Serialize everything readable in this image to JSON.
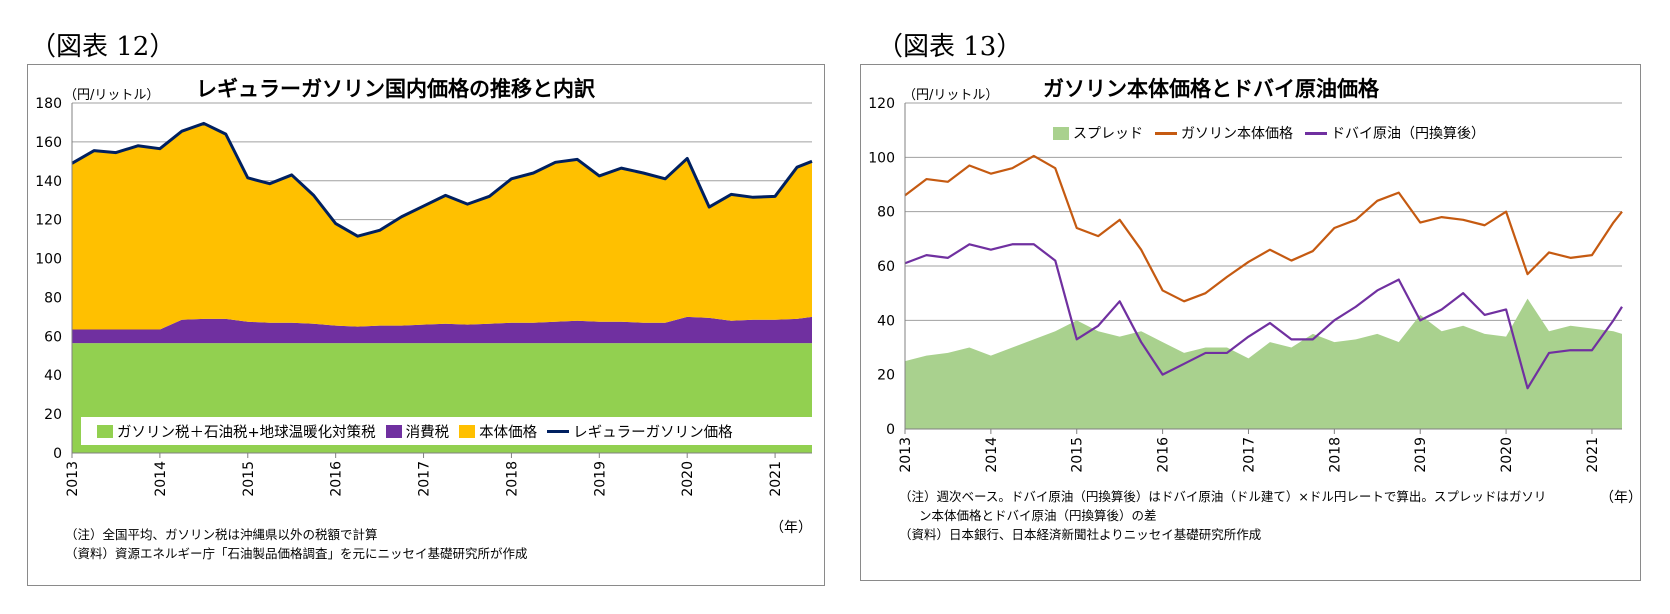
{
  "fig12": {
    "label": "（図表 12）",
    "chart_data": {
      "type": "area",
      "title": "レギュラーガソリン国内価格の推移と内訳",
      "ylabel": "（円/リットル）",
      "xlabel": "（年）",
      "ylim": [
        0,
        180
      ],
      "yticks": [
        "0",
        "20",
        "40",
        "60",
        "80",
        "100",
        "120",
        "140",
        "160",
        "180"
      ],
      "x_years": [
        "2013",
        "2014",
        "2015",
        "2016",
        "2017",
        "2018",
        "2019",
        "2020",
        "2021"
      ],
      "x_range": [
        2013.0,
        2021.42
      ],
      "time": [
        2013.0,
        2013.25,
        2013.5,
        2013.75,
        2014.0,
        2014.25,
        2014.5,
        2014.75,
        2015.0,
        2015.25,
        2015.5,
        2015.75,
        2016.0,
        2016.25,
        2016.5,
        2016.75,
        2017.0,
        2017.25,
        2017.5,
        2017.75,
        2018.0,
        2018.25,
        2018.5,
        2018.75,
        2019.0,
        2019.25,
        2019.5,
        2019.75,
        2020.0,
        2020.25,
        2020.5,
        2020.75,
        2021.0,
        2021.25,
        2021.42
      ],
      "series": [
        {
          "name": "ガソリン税＋石油税+地球温暖化対策税",
          "color": "#92d050",
          "values": [
            56.5,
            56.5,
            56.5,
            56.5,
            56.5,
            56.5,
            56.5,
            56.5,
            56.5,
            56.5,
            56.5,
            56.5,
            56.5,
            56.5,
            56.5,
            56.5,
            56.5,
            56.5,
            56.5,
            56.5,
            56.5,
            56.5,
            56.5,
            56.5,
            56.5,
            56.5,
            56.5,
            56.5,
            56.5,
            56.5,
            56.5,
            56.5,
            56.5,
            56.5,
            56.5
          ]
        },
        {
          "name": "消費税",
          "color": "#7030a0",
          "values": [
            7,
            7,
            7,
            7,
            7,
            12,
            12.5,
            12.5,
            11,
            10.5,
            10.5,
            10,
            9,
            8.5,
            9,
            9,
            9.5,
            10,
            9.5,
            10,
            10.5,
            10.5,
            11,
            11.5,
            11,
            11,
            10.5,
            10.5,
            13.5,
            13,
            11.5,
            12,
            12,
            12.5,
            13.5
          ]
        },
        {
          "name": "本体価格",
          "color": "#ffc000",
          "values": [
            85.5,
            92,
            91,
            94,
            93,
            97,
            100.5,
            95,
            74,
            71.5,
            76,
            66,
            52,
            46.5,
            49,
            56,
            61.5,
            66,
            62,
            65.5,
            74,
            77,
            82,
            83,
            75,
            79,
            77,
            74,
            81.5,
            57,
            65,
            63,
            63.5,
            78,
            80
          ]
        },
        {
          "name": "レギュラーガソリン価格",
          "color": "#002060",
          "values": [
            149,
            155.5,
            154.5,
            158,
            156.5,
            165.5,
            169.5,
            164,
            141.5,
            138.5,
            143,
            132.5,
            118,
            111.5,
            114.5,
            121.5,
            127,
            132.5,
            128,
            132,
            141,
            144,
            149.5,
            151,
            142.5,
            146.5,
            144,
            141,
            151.5,
            126.5,
            133,
            131.5,
            132,
            147,
            150
          ]
        }
      ]
    },
    "legend": [
      "ガソリン税＋石油税+地球温暖化対策税",
      "消費税",
      "本体価格",
      "レギュラーガソリン価格"
    ],
    "notes": [
      "（注）全国平均、ガソリン税は沖縄県以外の税額で計算",
      "（資料）資源エネルギー庁「石油製品価格調査」を元にニッセイ基礎研究所が作成"
    ]
  },
  "fig13": {
    "label": "（図表 13）",
    "chart_data": {
      "type": "line",
      "title": "ガソリン本体価格とドバイ原油価格",
      "ylabel": "（円/リットル）",
      "xlabel": "（年）",
      "ylim": [
        0,
        120
      ],
      "yticks": [
        "0",
        "20",
        "40",
        "60",
        "80",
        "100",
        "120"
      ],
      "x_years": [
        "2013",
        "2014",
        "2015",
        "2016",
        "2017",
        "2018",
        "2019",
        "2020",
        "2021"
      ],
      "x_range": [
        2013.0,
        2021.35
      ],
      "time": [
        2013.0,
        2013.25,
        2013.5,
        2013.75,
        2014.0,
        2014.25,
        2014.5,
        2014.75,
        2015.0,
        2015.25,
        2015.5,
        2015.75,
        2016.0,
        2016.25,
        2016.5,
        2016.75,
        2017.0,
        2017.25,
        2017.5,
        2017.75,
        2018.0,
        2018.25,
        2018.5,
        2018.75,
        2019.0,
        2019.25,
        2019.5,
        2019.75,
        2020.0,
        2020.25,
        2020.5,
        2020.75,
        2021.0,
        2021.25,
        2021.35
      ],
      "series": [
        {
          "name": "スプレッド",
          "color": "#a9d18e",
          "values": [
            25,
            27,
            28,
            30,
            27,
            30,
            33,
            36,
            40,
            36,
            34,
            36,
            32,
            28,
            30,
            30,
            26,
            32,
            30,
            35,
            32,
            33,
            35,
            32,
            42,
            36,
            38,
            35,
            34,
            48,
            36,
            38,
            37,
            36,
            35
          ]
        },
        {
          "name": "ガソリン本体価格",
          "color": "#c55a11",
          "values": [
            86,
            92,
            91,
            97,
            94,
            96,
            100.5,
            96,
            74,
            71,
            77,
            66,
            51,
            47,
            50,
            56,
            61.5,
            66,
            62,
            65.5,
            74,
            77,
            84,
            87,
            76,
            78,
            77,
            75,
            80,
            57,
            65,
            63,
            64,
            76,
            80
          ]
        },
        {
          "name": "ドバイ原油（円換算後）",
          "color": "#7030a0",
          "values": [
            61,
            64,
            63,
            68,
            66,
            68,
            68,
            62,
            33,
            38,
            47,
            32,
            20,
            24,
            28,
            28,
            34,
            39,
            33,
            33,
            40,
            45,
            51,
            55,
            40,
            44,
            50,
            42,
            44,
            15,
            28,
            29,
            29,
            40,
            45
          ]
        }
      ]
    },
    "legend": [
      "スプレッド",
      "ガソリン本体価格",
      "ドバイ原油（円換算後）"
    ],
    "notes": [
      "（注）週次ベース。ドバイ原油（円換算後）はドバイ原油（ドル建て）×ドル円レートで算出。スプレッドはガソリ",
      "ン本体価格とドバイ原油（円換算後）の差",
      "（資料）日本銀行、日本経済新聞社よりニッセイ基礎研究所作成"
    ]
  }
}
